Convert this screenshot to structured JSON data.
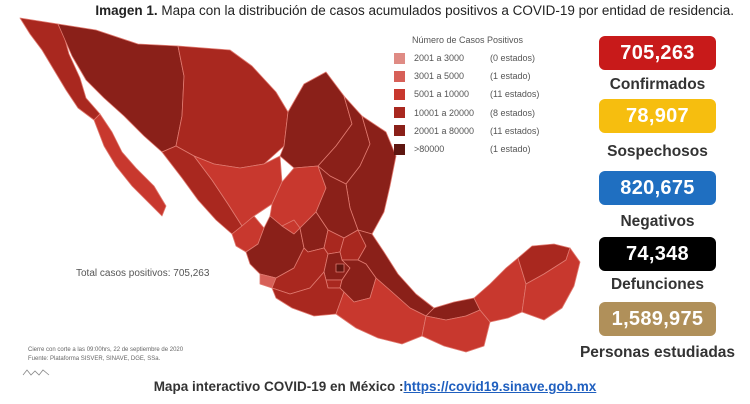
{
  "header": {
    "title_lead": "Imagen 1.",
    "title_rest": "Mapa con la distribución de casos acumulados positivos a COVID-19 por entidad de residencia."
  },
  "legend": {
    "title": "Número de Casos Positivos",
    "items": [
      {
        "range": "2001 a   3000",
        "count": "(0 estados)",
        "color": "#df8b84"
      },
      {
        "range": "3001 a   5000",
        "count": "(1 estado)",
        "color": "#d76058"
      },
      {
        "range": "5001 a   10000",
        "count": "(11 estados)",
        "color": "#c8382e"
      },
      {
        "range": "10001 a  20000",
        "count": "(8 estados)",
        "color": "#a9281f"
      },
      {
        "range": "20001 a  80000",
        "count": "(11 estados)",
        "color": "#8a2019"
      },
      {
        "range": ">80000",
        "count": "(1 estado)",
        "color": "#5e1610"
      }
    ]
  },
  "map": {
    "total_note": "Total casos positivos: 705,263",
    "source_line1": "Cierre con corte a las 09:00hrs, 22 de septiembre de 2020",
    "source_line2": "Fuente: Plataforma SISVER, SINAVE, DGE, SSa."
  },
  "stats": [
    {
      "value": "705,263",
      "label": "Confirmados",
      "color": "#c81a1a"
    },
    {
      "value": "78,907",
      "label": "Sospechosos",
      "color": "#f6be0f"
    },
    {
      "value": "820,675",
      "label": "Negativos",
      "color": "#1f6fc1"
    },
    {
      "value": "74,348",
      "label": "Defunciones",
      "color": "#000000"
    },
    {
      "value": "1,589,975",
      "label": "Personas estudiadas",
      "color": "#b0905a"
    }
  ],
  "footer": {
    "text": "Mapa interactivo COVID-19 en México :",
    "link": "https://covid19.sinave.gob.mx"
  }
}
